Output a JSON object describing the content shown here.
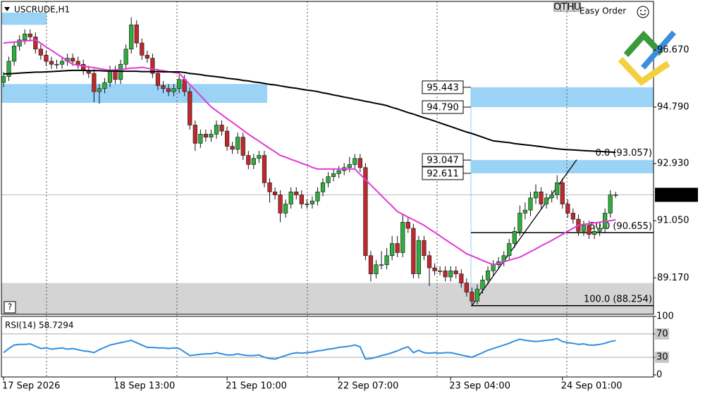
{
  "chart_data": [
    {
      "type": "candlestick",
      "title": "USCRUDE,H1",
      "categories": [
        "17 Sep 2026",
        null,
        null,
        null,
        null,
        null,
        null,
        null,
        null,
        null,
        null,
        null,
        null,
        null,
        null,
        null,
        null,
        null,
        null,
        null,
        null,
        "18 Sep 13:00",
        null,
        null,
        null,
        null,
        null,
        null,
        null,
        null,
        null,
        null,
        null,
        null,
        null,
        null,
        null,
        null,
        null,
        null,
        null,
        null,
        "21 Sep 10:00",
        null,
        null,
        null,
        null,
        null,
        null,
        null,
        null,
        null,
        null,
        null,
        null,
        null,
        null,
        null,
        null,
        null,
        null,
        null,
        null,
        "22 Sep 07:00",
        null,
        null,
        null,
        null,
        null,
        null,
        null,
        null,
        null,
        null,
        null,
        null,
        null,
        null,
        null,
        null,
        null,
        null,
        null,
        null,
        "23 Sep 04:00",
        null,
        null,
        null,
        null,
        null,
        null,
        null,
        null,
        null,
        null,
        null,
        null,
        null,
        null,
        null,
        null,
        null,
        null,
        null,
        null,
        "24 Sep 01:00",
        null,
        null,
        null,
        null,
        null,
        null,
        null,
        null,
        null,
        null
      ],
      "open": [
        95.6,
        95.8,
        96.3,
        96.8,
        97.0,
        97.2,
        97.1,
        96.7,
        96.5,
        96.3,
        96.2,
        96.2,
        96.3,
        96.4,
        96.3,
        96.2,
        96.0,
        95.9,
        95.3,
        95.4,
        95.6,
        96.0,
        95.7,
        96.2,
        96.7,
        97.5,
        96.9,
        96.5,
        96.4,
        95.9,
        95.5,
        95.4,
        95.3,
        95.4,
        95.7,
        95.3,
        94.2,
        93.6,
        93.9,
        93.8,
        93.9,
        94.2,
        94.0,
        93.5,
        93.4,
        93.8,
        93.2,
        92.9,
        93.1,
        93.2,
        92.3,
        92.0,
        91.9,
        91.3,
        91.6,
        92.0,
        91.9,
        91.6,
        91.6,
        91.7,
        92.0,
        92.3,
        92.5,
        92.6,
        92.7,
        92.8,
        92.9,
        93.1,
        92.8,
        89.9,
        89.3,
        89.6,
        89.6,
        89.9,
        90.3,
        90.0,
        91.0,
        90.8,
        89.3,
        90.4,
        89.9,
        89.5,
        89.4,
        89.4,
        89.2,
        89.4,
        89.3,
        89.0,
        88.7,
        88.4,
        88.8,
        89.1,
        89.4,
        89.6,
        89.7,
        89.9,
        90.3,
        90.7,
        91.3,
        91.4,
        91.8,
        92.0,
        91.6,
        91.8,
        91.9,
        92.3,
        91.6,
        91.3,
        91.1,
        90.7,
        90.9,
        90.6,
        90.7,
        90.8,
        91.3,
        91.9
      ],
      "high": [
        95.95,
        96.45,
        96.95,
        97.15,
        97.35,
        97.35,
        97.25,
        96.85,
        96.65,
        96.45,
        96.35,
        96.45,
        96.55,
        96.55,
        96.45,
        96.35,
        96.15,
        96.05,
        95.55,
        95.75,
        96.15,
        96.15,
        96.35,
        96.85,
        97.75,
        97.65,
        97.05,
        96.65,
        96.55,
        96.05,
        95.65,
        95.55,
        95.55,
        95.85,
        95.85,
        95.45,
        94.35,
        94.05,
        94.05,
        94.05,
        94.35,
        94.35,
        94.15,
        93.65,
        93.95,
        93.95,
        93.35,
        93.25,
        93.35,
        93.35,
        92.45,
        92.15,
        92.05,
        91.75,
        92.15,
        92.15,
        92.05,
        91.75,
        91.85,
        92.15,
        92.45,
        92.65,
        92.75,
        92.85,
        92.95,
        93.15,
        93.25,
        93.25,
        92.95,
        90.05,
        89.75,
        90.05,
        90.15,
        90.55,
        90.55,
        91.25,
        91.15,
        90.95,
        90.55,
        90.55,
        90.05,
        89.65,
        89.55,
        89.55,
        89.55,
        89.55,
        89.45,
        89.15,
        88.85,
        88.95,
        89.25,
        89.55,
        89.75,
        89.85,
        90.05,
        90.45,
        90.85,
        91.55,
        91.65,
        92.0,
        92.25,
        92.15,
        91.95,
        92.05,
        92.55,
        92.45,
        91.75,
        91.45,
        91.25,
        91.05,
        91.05,
        90.85,
        90.95,
        91.45,
        92.05,
        92.0
      ],
      "low": [
        95.45,
        95.65,
        96.15,
        96.65,
        96.85,
        96.95,
        96.55,
        96.35,
        96.15,
        96.05,
        96.05,
        96.05,
        96.15,
        96.15,
        96.05,
        95.85,
        95.75,
        94.95,
        94.9,
        95.25,
        95.45,
        95.55,
        95.55,
        96.05,
        96.55,
        96.75,
        96.35,
        96.25,
        95.75,
        95.35,
        95.25,
        95.15,
        95.15,
        95.25,
        95.15,
        94.05,
        93.35,
        93.45,
        93.65,
        93.65,
        93.75,
        93.85,
        93.35,
        93.25,
        93.25,
        93.05,
        92.75,
        92.75,
        92.95,
        92.15,
        91.65,
        91.75,
        91.0,
        91.15,
        91.45,
        91.75,
        91.45,
        91.45,
        91.45,
        91.55,
        91.85,
        92.15,
        92.35,
        92.45,
        92.55,
        92.65,
        92.75,
        92.65,
        89.75,
        89.05,
        89.15,
        89.45,
        89.45,
        89.75,
        89.85,
        89.85,
        90.65,
        89.15,
        89.15,
        89.75,
        88.9,
        89.25,
        89.25,
        89.05,
        89.05,
        89.15,
        88.85,
        88.55,
        88.254,
        88.3,
        88.65,
        88.95,
        89.25,
        89.45,
        89.55,
        89.75,
        90.15,
        90.55,
        91.1,
        91.2,
        91.6,
        91.45,
        91.45,
        91.65,
        91.75,
        91.45,
        91.15,
        90.95,
        90.55,
        90.55,
        90.45,
        90.45,
        90.55,
        90.65,
        91.15,
        91.8
      ],
      "close": [
        95.8,
        96.3,
        96.8,
        97.0,
        97.2,
        97.1,
        96.7,
        96.5,
        96.3,
        96.2,
        96.2,
        96.3,
        96.4,
        96.3,
        96.2,
        96.0,
        95.9,
        95.3,
        95.4,
        95.6,
        96.0,
        95.7,
        96.2,
        96.7,
        97.5,
        96.9,
        96.5,
        96.4,
        95.9,
        95.5,
        95.4,
        95.3,
        95.4,
        95.7,
        95.3,
        94.2,
        93.6,
        93.9,
        93.8,
        93.9,
        94.2,
        94.0,
        93.5,
        93.4,
        93.8,
        93.2,
        92.9,
        93.1,
        93.2,
        92.3,
        92.0,
        91.9,
        91.3,
        91.6,
        92.0,
        91.9,
        91.6,
        91.6,
        91.7,
        92.0,
        92.3,
        92.5,
        92.6,
        92.7,
        92.8,
        92.9,
        93.1,
        92.8,
        89.9,
        89.3,
        89.6,
        89.6,
        89.9,
        90.3,
        90.0,
        91.0,
        90.8,
        89.3,
        90.4,
        89.9,
        89.5,
        89.4,
        89.4,
        89.2,
        89.4,
        89.3,
        89.0,
        88.7,
        88.4,
        88.8,
        89.1,
        89.4,
        89.6,
        89.7,
        89.9,
        90.3,
        90.7,
        91.3,
        91.4,
        91.8,
        92.0,
        91.6,
        91.8,
        91.9,
        92.3,
        91.6,
        91.3,
        91.1,
        90.7,
        90.9,
        90.6,
        90.7,
        90.8,
        91.3,
        91.9,
        91.903
      ],
      "up_color": "#2fae3f",
      "down_color": "#c0282d",
      "lines": [
        {
          "color": "#e03ad8",
          "values": [
            96.9,
            96.92,
            96.93,
            96.95,
            96.97,
            96.98,
            97.0,
            96.89,
            96.77,
            96.66,
            96.54,
            96.43,
            96.31,
            96.2,
            96.17,
            96.14,
            96.11,
            96.09,
            96.06,
            96.03,
            96.0,
            96.02,
            96.03,
            96.05,
            96.07,
            96.08,
            96.1,
            96.07,
            96.04,
            96.01,
            95.99,
            95.96,
            95.93,
            95.9,
            95.72,
            95.53,
            95.35,
            95.17,
            94.98,
            94.8,
            94.67,
            94.54,
            94.41,
            94.29,
            94.16,
            94.03,
            93.9,
            93.78,
            93.67,
            93.55,
            93.43,
            93.32,
            93.2,
            93.14,
            93.07,
            93.01,
            92.94,
            92.88,
            92.81,
            92.75,
            92.75,
            92.75,
            92.75,
            92.75,
            92.75,
            92.75,
            92.75,
            92.58,
            92.4,
            92.23,
            92.05,
            91.88,
            91.7,
            91.53,
            91.35,
            91.26,
            91.17,
            91.08,
            90.99,
            90.9,
            90.78,
            90.67,
            90.55,
            90.43,
            90.31,
            90.2,
            90.08,
            89.96,
            89.89,
            89.82,
            89.74,
            89.67,
            89.6,
            89.65,
            89.7,
            89.75,
            89.8,
            89.85,
            89.94,
            90.03,
            90.12,
            90.22,
            90.31,
            90.4,
            90.5,
            90.6,
            90.7,
            90.8,
            90.9,
            90.93,
            90.95,
            90.98,
            91.0,
            91.03,
            91.05,
            91.08
          ]
        },
        {
          "color": "#000000",
          "values": [
            95.88,
            95.89,
            95.9,
            95.91,
            95.92,
            95.93,
            95.94,
            95.94,
            95.95,
            95.96,
            95.97,
            95.98,
            95.99,
            96.0,
            96.0,
            96.0,
            95.99,
            95.99,
            95.99,
            95.98,
            95.98,
            95.98,
            95.97,
            95.97,
            95.97,
            95.97,
            95.96,
            95.96,
            95.96,
            95.96,
            95.95,
            95.95,
            95.95,
            95.95,
            95.93,
            95.9,
            95.88,
            95.86,
            95.83,
            95.81,
            95.79,
            95.77,
            95.74,
            95.72,
            95.7,
            95.67,
            95.65,
            95.62,
            95.6,
            95.57,
            95.54,
            95.52,
            95.49,
            95.46,
            95.43,
            95.41,
            95.38,
            95.35,
            95.33,
            95.3,
            95.26,
            95.23,
            95.19,
            95.16,
            95.12,
            95.09,
            95.05,
            95.02,
            94.98,
            94.95,
            94.91,
            94.88,
            94.84,
            94.78,
            94.73,
            94.67,
            94.61,
            94.56,
            94.5,
            94.44,
            94.39,
            94.33,
            94.27,
            94.21,
            94.15,
            94.09,
            94.03,
            93.97,
            93.92,
            93.86,
            93.8,
            93.74,
            93.68,
            93.66,
            93.64,
            93.62,
            93.59,
            93.57,
            93.55,
            93.53,
            93.51,
            93.49,
            93.46,
            93.44,
            93.42,
            93.4,
            93.39,
            93.38,
            93.37,
            93.36,
            93.35,
            93.34,
            93.33,
            93.32,
            93.31,
            93.3
          ]
        }
      ],
      "zones": [
        {
          "low": 97.5,
          "high": 97.9,
          "color": "#9ad3f5"
        },
        {
          "low": 94.93,
          "high": 95.55,
          "color": "#9ad3f5"
        },
        {
          "low": {
            "value": 94.79,
            "label": "94.790"
          },
          "high": 95.443,
          "color": "#9ad3f5"
        },
        {
          "low": 92.611,
          "high": 93.047,
          "color": "#9ad3f5"
        },
        {
          "low": 87.97,
          "high": 89.0,
          "color": "#d4d4d4"
        }
      ],
      "fib_levels": [
        {
          "value": 93.057,
          "label": "0.0 (93.057)"
        },
        {
          "value": 90.655,
          "label": "50.0 (90.655)"
        },
        {
          "value": 88.254,
          "label": "100.0 (88.254)"
        }
      ],
      "last_price": 91.903,
      "ylim": [
        87.97,
        98.27
      ],
      "yticks": [
        {
          "value": 96.67,
          "label": "96.670"
        },
        {
          "value": 94.79,
          "label": "94.790"
        },
        {
          "value": 92.93,
          "label": "92.930"
        },
        {
          "value": 91.05,
          "label": "91.050"
        },
        {
          "value": 89.17,
          "label": "89.170"
        }
      ]
    },
    {
      "type": "line",
      "title": "RSI(14) 58.7294",
      "color": "#2f8fe0",
      "values": [
        38,
        45,
        51,
        52,
        52,
        53,
        49,
        45,
        46,
        44,
        45,
        46,
        44,
        45,
        43,
        41,
        40,
        38,
        43,
        47,
        51,
        53,
        55,
        57,
        59,
        55,
        51,
        47,
        47,
        46,
        46,
        45,
        46,
        45,
        39,
        33,
        34,
        35,
        36,
        36,
        38,
        36,
        34,
        34,
        36,
        34,
        33,
        33,
        34,
        30,
        28,
        27,
        30,
        33,
        36,
        38,
        37,
        38,
        39,
        41,
        42,
        44,
        45,
        47,
        48,
        49,
        51,
        48,
        27,
        28,
        30,
        33,
        35,
        38,
        41,
        45,
        48,
        38,
        42,
        38,
        37,
        38,
        37,
        38,
        38,
        36,
        34,
        32,
        30,
        34,
        38,
        42,
        45,
        48,
        51,
        54,
        58,
        61,
        59,
        58,
        57,
        58,
        59,
        60,
        62,
        57,
        55,
        54,
        52,
        53,
        51,
        51,
        52,
        54,
        57,
        58.7294
      ],
      "ylim": [
        0,
        100
      ],
      "yticks": [
        100,
        70,
        30,
        0
      ],
      "levels": [
        70,
        30
      ]
    }
  ],
  "toolbar": {
    "buttons": [
      "O",
      "T",
      "H",
      "U"
    ],
    "label": "Easy Order"
  },
  "help": "?"
}
